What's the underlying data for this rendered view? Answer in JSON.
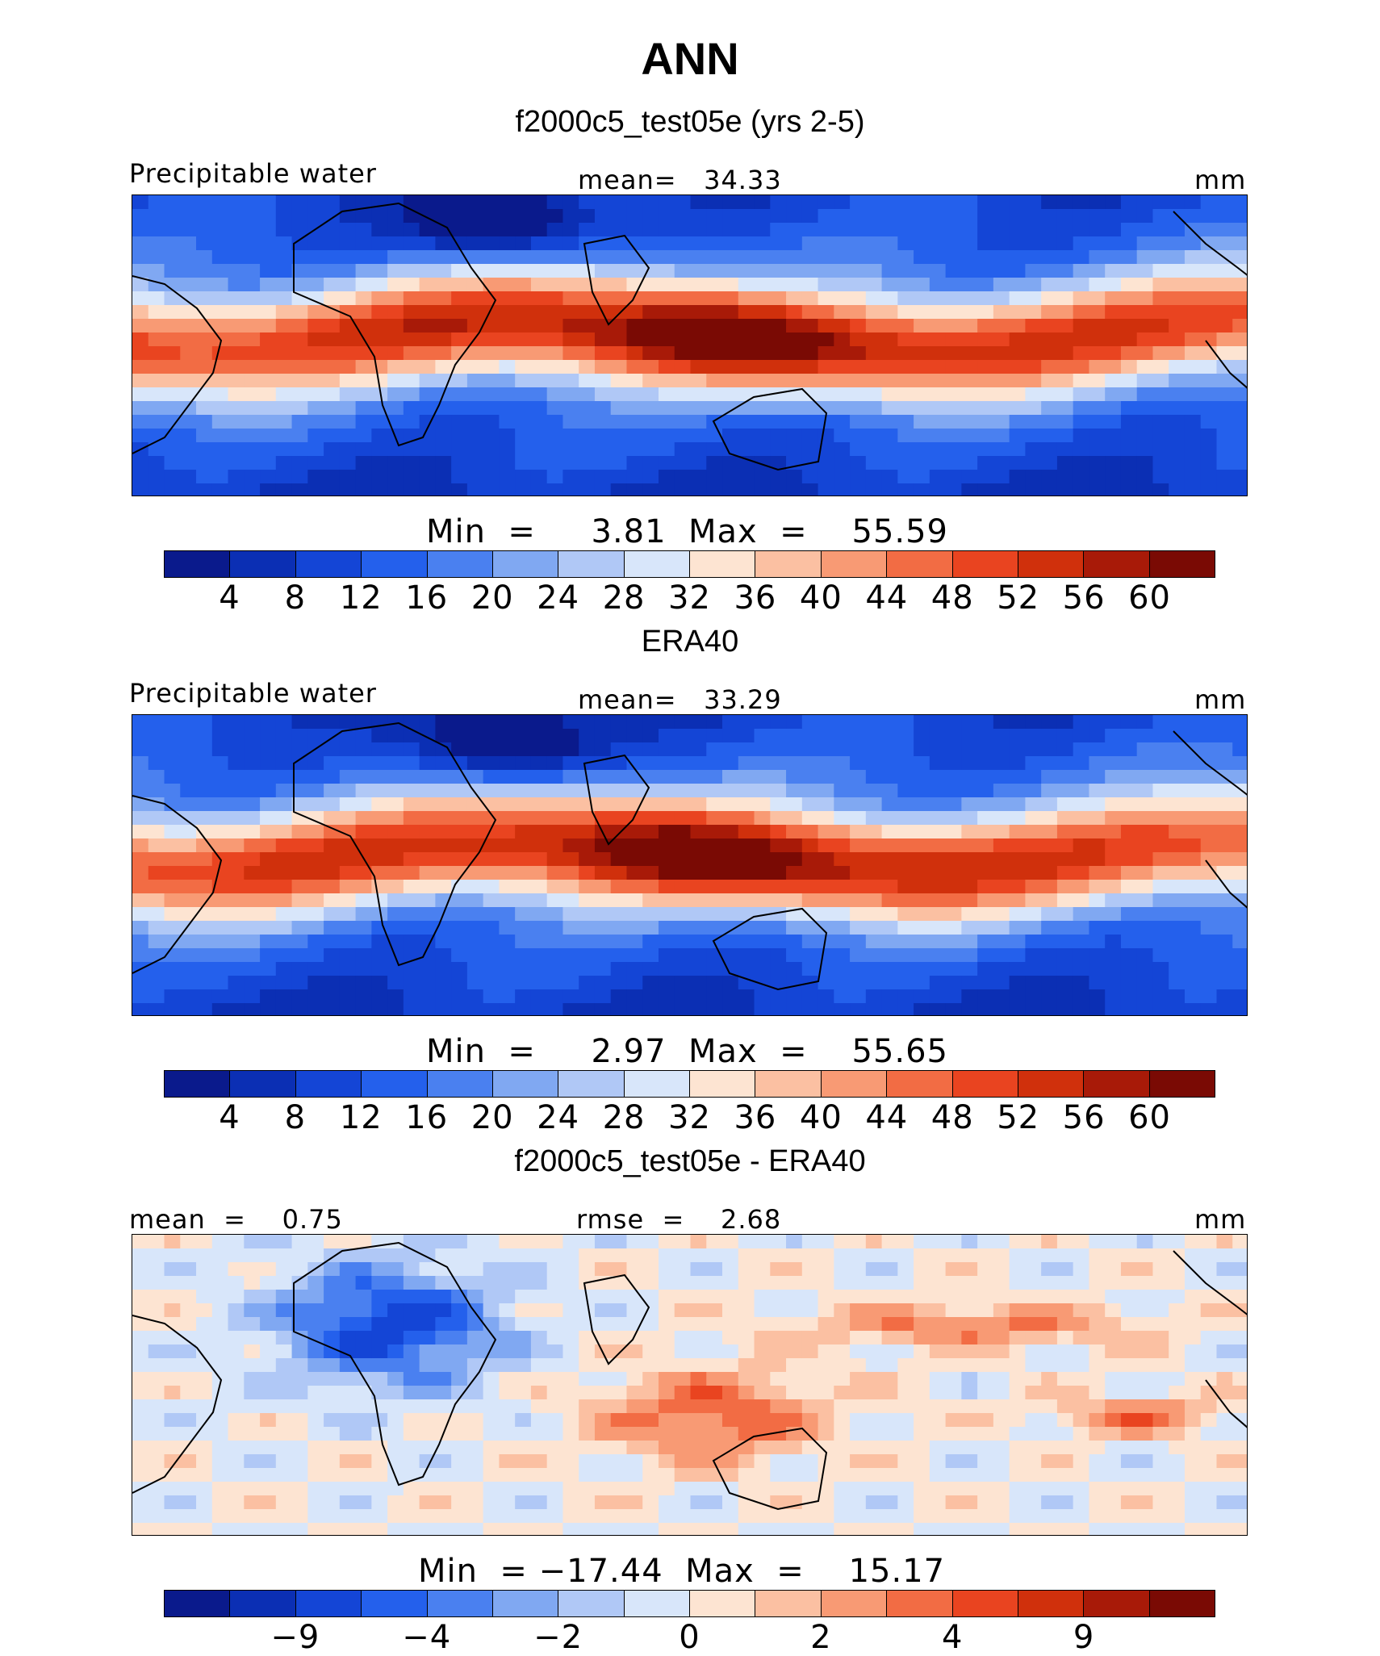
{
  "title": "ANN",
  "panels": [
    {
      "id": "model",
      "title": "f2000c5_test05e (yrs 2-5)",
      "left_label": "Precipitable water",
      "center_label": "mean=   34.33",
      "units": "mm",
      "minmax": "Min  =     3.81  Max  =    55.59",
      "colorbar_ticks": [
        "4",
        "8",
        "12",
        "16",
        "20",
        "24",
        "28",
        "32",
        "36",
        "40",
        "44",
        "48",
        "52",
        "56",
        "60"
      ],
      "field_mode": "clim"
    },
    {
      "id": "obs",
      "title": "ERA40",
      "left_label": "Precipitable water",
      "center_label": "mean=   33.29",
      "units": "mm",
      "minmax": "Min  =     2.97  Max  =    55.65",
      "colorbar_ticks": [
        "4",
        "8",
        "12",
        "16",
        "20",
        "24",
        "28",
        "32",
        "36",
        "40",
        "44",
        "48",
        "52",
        "56",
        "60"
      ],
      "field_mode": "clim"
    },
    {
      "id": "diff",
      "title": "f2000c5_test05e - ERA40",
      "left_label": "mean  =    0.75",
      "center_label": "rmse  =    2.68",
      "units": "mm",
      "minmax": "Min  = −17.44  Max  =    15.17",
      "colorbar_ticks": [
        "−9",
        "−4",
        "−2",
        "0",
        "2",
        "4",
        "9"
      ],
      "field_mode": "diff"
    }
  ],
  "colorbar_colors": [
    "#0a1a8c",
    "#0b2fb4",
    "#1445d6",
    "#2460ec",
    "#4a80f0",
    "#80a8f2",
    "#b0c8f6",
    "#d8e6fa",
    "#fde4d2",
    "#fbc0a2",
    "#f89a74",
    "#f26c44",
    "#e94420",
    "#d0300c",
    "#a81a08",
    "#7a0a04"
  ]
}
